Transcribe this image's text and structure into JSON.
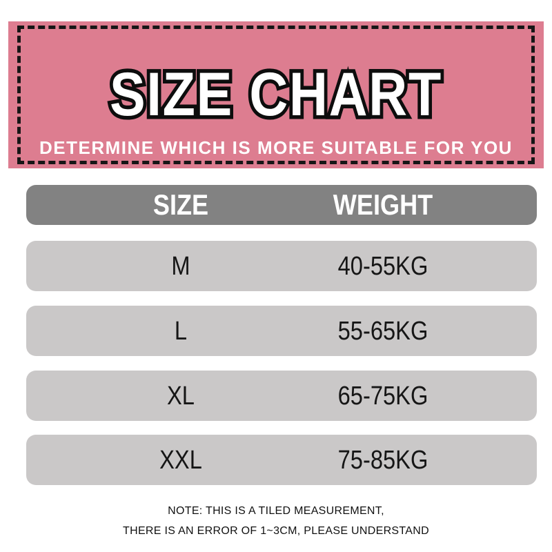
{
  "banner": {
    "title": "SIZE CHART",
    "subtitle": "DETERMINE WHICH IS MORE SUITABLE FOR YOU",
    "background_color": "#dd7d90",
    "dash_border_color": "#161616",
    "title_fill_color": "#ffffff",
    "title_outline_color": "#0d0d0d",
    "subtitle_color": "#ffffff"
  },
  "table": {
    "header": {
      "size_label": "SIZE",
      "weight_label": "WEIGHT"
    },
    "header_background": "#828282",
    "header_text_color": "#ffffff",
    "row_background": "#cac8c8",
    "row_text_color": "#161616",
    "rows": [
      {
        "size": "M",
        "weight": "40-55KG"
      },
      {
        "size": "L",
        "weight": "55-65KG"
      },
      {
        "size": "XL",
        "weight": "65-75KG"
      },
      {
        "size": "XXL",
        "weight": "75-85KG"
      }
    ]
  },
  "note": {
    "line1": "NOTE: THIS IS A TILED MEASUREMENT,",
    "line2": "THERE IS AN ERROR OF 1~3CM, PLEASE UNDERSTAND"
  },
  "chart_data": {
    "type": "table",
    "title": "SIZE CHART",
    "subtitle": "DETERMINE WHICH IS MORE SUITABLE FOR YOU",
    "columns": [
      "SIZE",
      "WEIGHT"
    ],
    "rows": [
      [
        "M",
        "40-55KG"
      ],
      [
        "L",
        "55-65KG"
      ],
      [
        "XL",
        "65-75KG"
      ],
      [
        "XXL",
        "75-85KG"
      ]
    ],
    "footnote": "NOTE: THIS IS A TILED MEASUREMENT, THERE IS AN ERROR OF 1~3CM, PLEASE UNDERSTAND"
  }
}
